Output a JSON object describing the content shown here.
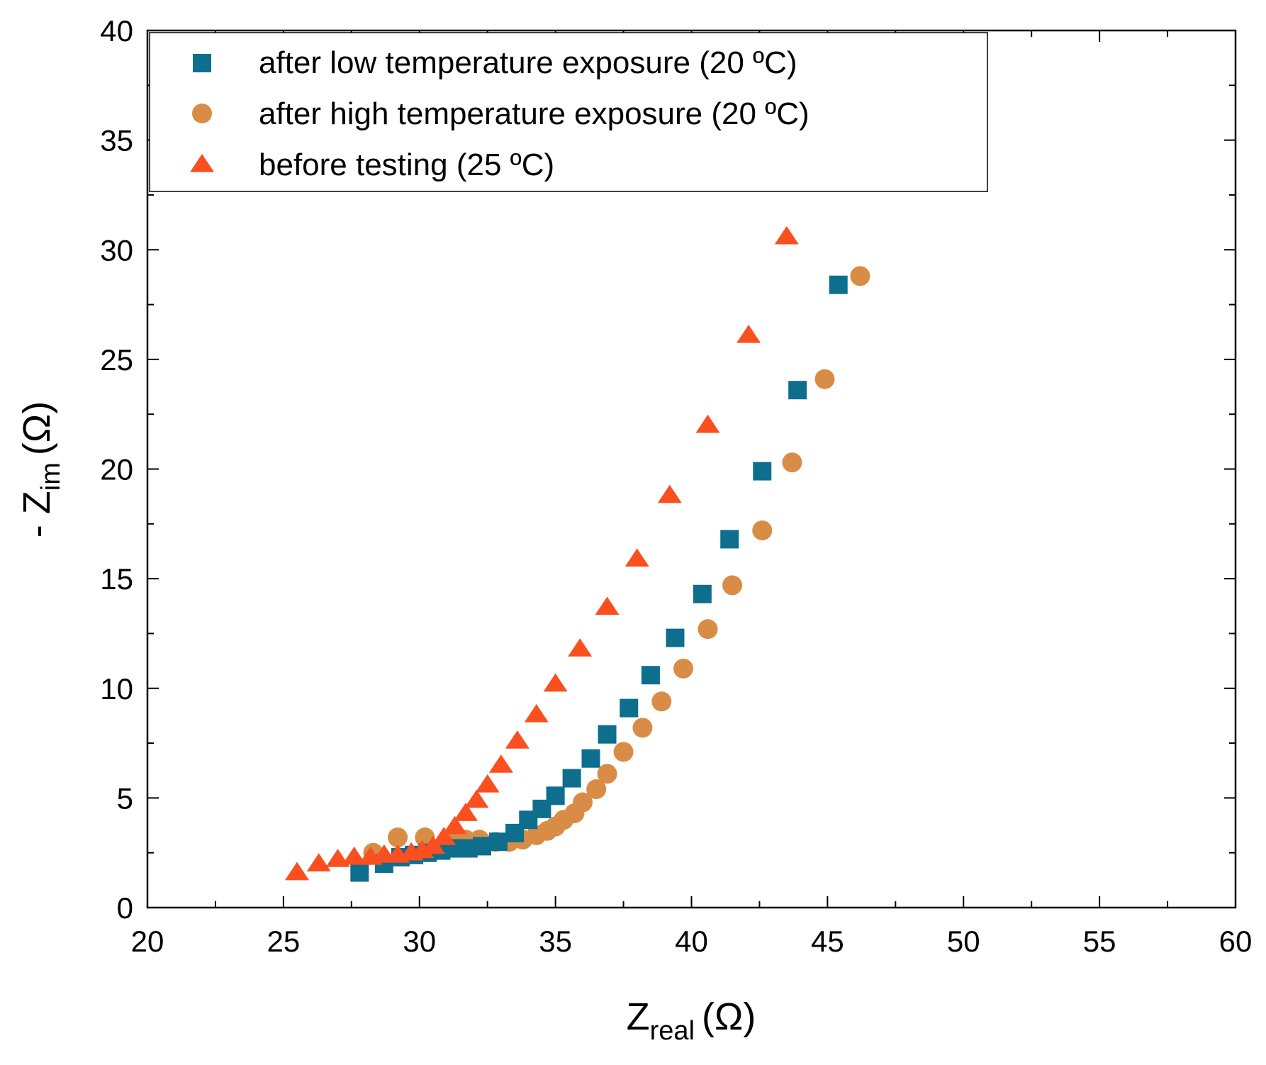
{
  "chart_data": {
    "type": "scatter",
    "title": "",
    "xlabel": {
      "main": "Z",
      "sub": "real",
      "unit": "(Ω)"
    },
    "ylabel": {
      "prefix": "- Z",
      "sub": "im",
      "unit": "(Ω)"
    },
    "xlim": [
      20,
      60
    ],
    "ylim": [
      0,
      40
    ],
    "x_ticks": [
      "20",
      "25",
      "30",
      "35",
      "40",
      "45",
      "50",
      "55",
      "60"
    ],
    "y_ticks": [
      "0",
      "5",
      "10",
      "15",
      "20",
      "25",
      "30",
      "35",
      "40"
    ],
    "legend_position": "top-left",
    "grid": false,
    "series": [
      {
        "name": "after low temperature exposure (20 ºC)",
        "marker": "square",
        "color": "#0e6e8e",
        "x": [
          27.8,
          28.7,
          29.3,
          29.8,
          30.3,
          30.8,
          31.3,
          31.8,
          32.3,
          32.9,
          33.5,
          34.0,
          34.5,
          35.0,
          35.6,
          36.3,
          36.9,
          37.7,
          38.5,
          39.4,
          40.4,
          41.4,
          42.6,
          43.9,
          45.4
        ],
        "y": [
          1.6,
          2.0,
          2.3,
          2.4,
          2.5,
          2.6,
          2.7,
          2.7,
          2.8,
          3.0,
          3.4,
          4.0,
          4.5,
          5.1,
          5.9,
          6.8,
          7.9,
          9.1,
          10.6,
          12.3,
          14.3,
          16.8,
          19.9,
          23.6,
          28.4
        ]
      },
      {
        "name": "after high temperature exposure (20 ºC)",
        "marker": "circle",
        "color": "#d98c46",
        "x": [
          28.3,
          29.2,
          30.2,
          31.2,
          31.7,
          32.2,
          32.8,
          33.3,
          33.8,
          34.3,
          34.7,
          35.0,
          35.3,
          35.7,
          36.0,
          36.5,
          36.9,
          37.5,
          38.2,
          38.9,
          39.7,
          40.6,
          41.5,
          42.6,
          43.7,
          44.9,
          46.2
        ],
        "y": [
          2.5,
          3.2,
          3.2,
          3.1,
          3.1,
          3.1,
          3.0,
          3.0,
          3.1,
          3.3,
          3.5,
          3.7,
          4.0,
          4.3,
          4.8,
          5.4,
          6.1,
          7.1,
          8.2,
          9.4,
          10.9,
          12.7,
          14.7,
          17.2,
          20.3,
          24.1,
          28.8
        ]
      },
      {
        "name": "before testing (25 ºC)",
        "marker": "triangle",
        "color": "#fa4f1f",
        "x": [
          25.5,
          26.3,
          27.0,
          27.6,
          28.2,
          28.7,
          29.2,
          29.7,
          30.1,
          30.5,
          30.9,
          31.3,
          31.7,
          32.1,
          32.5,
          33.0,
          33.6,
          34.3,
          35.0,
          35.9,
          36.9,
          38.0,
          39.2,
          40.6,
          42.1,
          43.5
        ],
        "y": [
          1.6,
          2.0,
          2.2,
          2.3,
          2.3,
          2.4,
          2.4,
          2.5,
          2.6,
          2.8,
          3.2,
          3.7,
          4.3,
          4.9,
          5.6,
          6.5,
          7.6,
          8.8,
          10.2,
          11.8,
          13.7,
          15.9,
          18.8,
          22.0,
          26.1,
          30.6
        ]
      }
    ]
  }
}
